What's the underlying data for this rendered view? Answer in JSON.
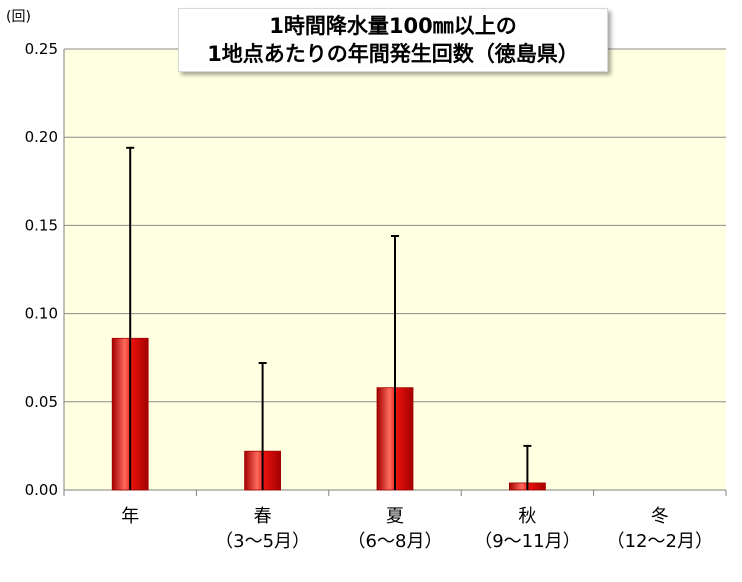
{
  "chart_data": {
    "type": "bar",
    "title": [
      "1時間降水量100㎜以上の",
      "1地点あたりの年間発生回数（徳島県）"
    ],
    "unit": "(回)",
    "categories": [
      {
        "line1": "年",
        "line2": ""
      },
      {
        "line1": "春",
        "line2": "（3～5月）"
      },
      {
        "line1": "夏",
        "line2": "（6～8月）"
      },
      {
        "line1": "秋",
        "line2": "（9～11月）"
      },
      {
        "line1": "冬",
        "line2": "（12～2月）"
      }
    ],
    "values": [
      0.086,
      0.022,
      0.058,
      0.004,
      0.0
    ],
    "error_upper": [
      0.194,
      0.072,
      0.144,
      0.025,
      0.0
    ],
    "ylim": [
      0,
      0.25
    ],
    "yticks": [
      "0.00",
      "0.05",
      "0.10",
      "0.15",
      "0.20",
      "0.25"
    ],
    "grid": true,
    "colors": {
      "plot_bg": "#ffffe1",
      "bar_fill": "#e8120c",
      "bar_dark": "#a30000",
      "bar_light": "#ff6b5e",
      "grid": "#8c8c8c"
    }
  }
}
